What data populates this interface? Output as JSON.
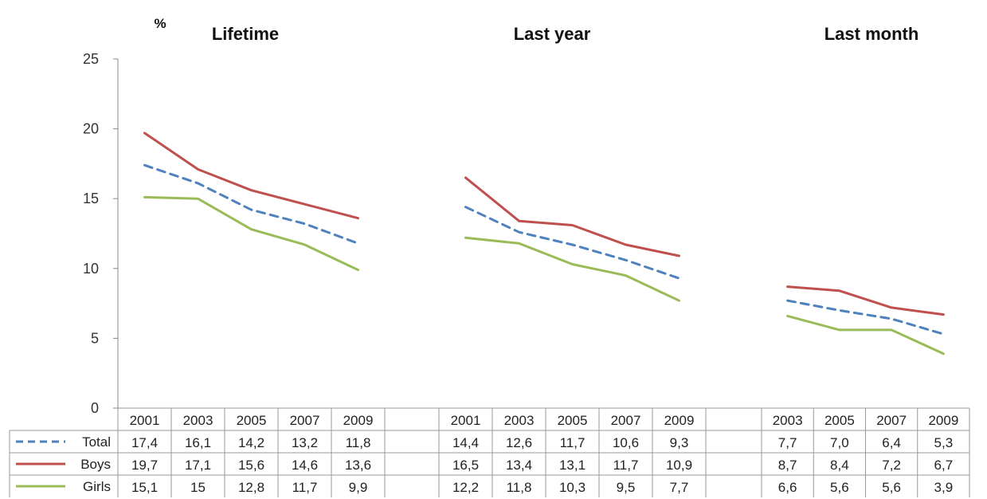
{
  "chart_data": {
    "type": "line",
    "unit_label": "%",
    "ylim": [
      0,
      25
    ],
    "yticks": [
      0,
      5,
      10,
      15,
      20,
      25
    ],
    "grid": false,
    "legend": "data-table-left",
    "series_colors": {
      "Total": "#4f81bd",
      "Boys": "#c0504d",
      "Girls": "#9bbb59"
    },
    "panels": [
      {
        "title": "Lifetime",
        "years": [
          "2001",
          "2003",
          "2005",
          "2007",
          "2009"
        ],
        "series": [
          {
            "name": "Total",
            "values": [
              17.4,
              16.1,
              14.2,
              13.2,
              11.8
            ],
            "labels": [
              "17,4",
              "16,1",
              "14,2",
              "13,2",
              "11,8"
            ]
          },
          {
            "name": "Boys",
            "values": [
              19.7,
              17.1,
              15.6,
              14.6,
              13.6
            ],
            "labels": [
              "19,7",
              "17,1",
              "15,6",
              "14,6",
              "13,6"
            ]
          },
          {
            "name": "Girls",
            "values": [
              15.1,
              15.0,
              12.8,
              11.7,
              9.9
            ],
            "labels": [
              "15,1",
              "15",
              "12,8",
              "11,7",
              "9,9"
            ]
          }
        ]
      },
      {
        "title": "Last year",
        "years": [
          "2001",
          "2003",
          "2005",
          "2007",
          "2009"
        ],
        "series": [
          {
            "name": "Total",
            "values": [
              14.4,
              12.6,
              11.7,
              10.6,
              9.3
            ],
            "labels": [
              "14,4",
              "12,6",
              "11,7",
              "10,6",
              "9,3"
            ]
          },
          {
            "name": "Boys",
            "values": [
              16.5,
              13.4,
              13.1,
              11.7,
              10.9
            ],
            "labels": [
              "16,5",
              "13,4",
              "13,1",
              "11,7",
              "10,9"
            ]
          },
          {
            "name": "Girls",
            "values": [
              12.2,
              11.8,
              10.3,
              9.5,
              7.7
            ],
            "labels": [
              "12,2",
              "11,8",
              "10,3",
              "9,5",
              "7,7"
            ]
          }
        ]
      },
      {
        "title": "Last month",
        "years": [
          "2003",
          "2005",
          "2007",
          "2009"
        ],
        "series": [
          {
            "name": "Total",
            "values": [
              7.7,
              7.0,
              6.4,
              5.3
            ],
            "labels": [
              "7,7",
              "7,0",
              "6,4",
              "5,3"
            ]
          },
          {
            "name": "Boys",
            "values": [
              8.7,
              8.4,
              7.2,
              6.7
            ],
            "labels": [
              "8,7",
              "8,4",
              "7,2",
              "6,7"
            ]
          },
          {
            "name": "Girls",
            "values": [
              6.6,
              5.6,
              5.6,
              3.9
            ],
            "labels": [
              "6,6",
              "5,6",
              "5,6",
              "3,9"
            ]
          }
        ]
      }
    ]
  }
}
